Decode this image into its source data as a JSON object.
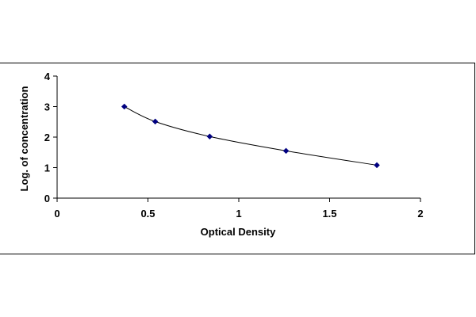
{
  "chart_data": {
    "type": "scatter",
    "title": "",
    "xlabel": "Optical Density",
    "ylabel": "Log. of concentration",
    "xlim": [
      0,
      2
    ],
    "ylim": [
      0,
      4
    ],
    "x_ticks": [
      "0",
      "0.5",
      "1",
      "1.5",
      "2"
    ],
    "y_ticks": [
      "0",
      "1",
      "2",
      "3",
      "4"
    ],
    "grid": false,
    "legend": "none",
    "marker_color": "#000080",
    "curve_color": "#000000",
    "series": [
      {
        "x": [
          0.37,
          0.54,
          0.84,
          1.26,
          1.76
        ],
        "y": [
          3.0,
          2.51,
          2.02,
          1.55,
          1.08
        ]
      }
    ]
  }
}
